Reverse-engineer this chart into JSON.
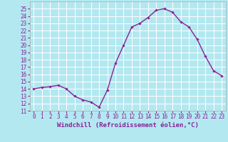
{
  "x": [
    0,
    1,
    2,
    3,
    4,
    5,
    6,
    7,
    8,
    9,
    10,
    11,
    12,
    13,
    14,
    15,
    16,
    17,
    18,
    19,
    20,
    21,
    22,
    23
  ],
  "y": [
    14.0,
    14.2,
    14.3,
    14.5,
    14.0,
    13.0,
    12.5,
    12.2,
    11.5,
    13.8,
    17.5,
    20.0,
    22.5,
    23.0,
    23.8,
    24.8,
    25.0,
    24.5,
    23.2,
    22.5,
    20.8,
    18.5,
    16.5,
    15.8
  ],
  "line_color": "#882299",
  "marker": "D",
  "marker_size": 1.8,
  "linewidth": 1.0,
  "bg_color": "#b3e8f0",
  "grid_color": "#ffffff",
  "xlabel": "Windchill (Refroidissement éolien,°C)",
  "xlim": [
    -0.5,
    23.5
  ],
  "ylim": [
    11,
    26
  ],
  "yticks": [
    11,
    12,
    13,
    14,
    15,
    16,
    17,
    18,
    19,
    20,
    21,
    22,
    23,
    24,
    25
  ],
  "xticks": [
    0,
    1,
    2,
    3,
    4,
    5,
    6,
    7,
    8,
    9,
    10,
    11,
    12,
    13,
    14,
    15,
    16,
    17,
    18,
    19,
    20,
    21,
    22,
    23
  ],
  "label_color": "#882299",
  "xlabel_fontsize": 6.5,
  "tick_fontsize": 5.5
}
